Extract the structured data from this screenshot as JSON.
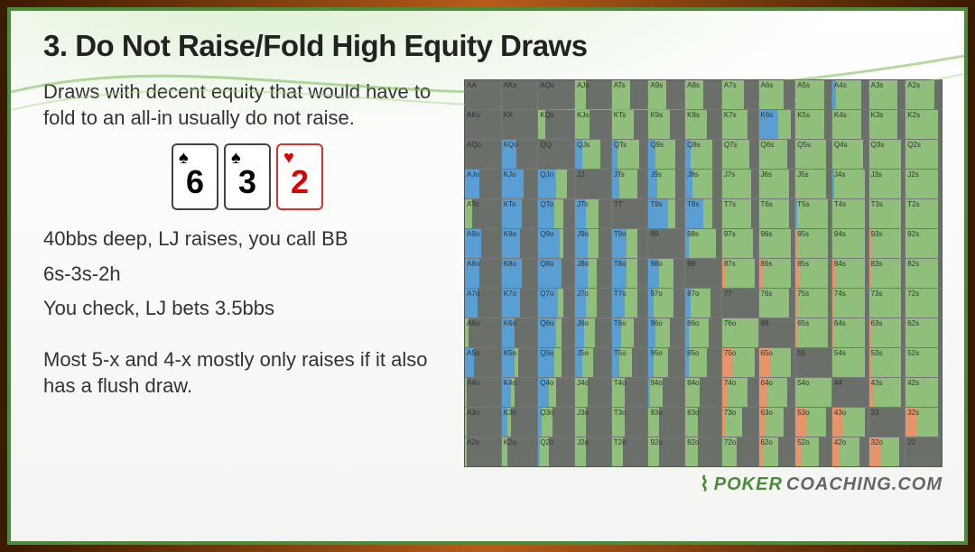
{
  "title": "3. Do Not Raise/Fold High Equity Draws",
  "para1": "Draws with decent equity that would have to fold to an all-in usually do not raise.",
  "cards": [
    {
      "rank": "6",
      "suit": "♠",
      "color": "black"
    },
    {
      "rank": "3",
      "suit": "♠",
      "color": "black"
    },
    {
      "rank": "2",
      "suit": "♥",
      "color": "red"
    }
  ],
  "line1": "40bbs deep, LJ raises, you call BB",
  "line2": "6s-3s-2h",
  "line3": "You check, LJ bets 3.5bbs",
  "para2": "Most 5-x and 4-x mostly only raises if it also has a flush draw.",
  "logo_brand": "POKER",
  "logo_suffix": "COACHING.COM",
  "colors": {
    "fold": "#6a6f6a",
    "call": "#8fbf7a",
    "raise_s": "#5a9fd4",
    "raise_l": "#e8946a",
    "grid_border": "#777"
  },
  "ranks": [
    "A",
    "K",
    "Q",
    "J",
    "T",
    "9",
    "8",
    "7",
    "6",
    "5",
    "4",
    "3",
    "2"
  ],
  "grid": [
    [
      {
        "f": 1.0
      },
      {
        "f": 1.0
      },
      {
        "f": 1.0
      },
      {
        "c": 0.3,
        "f": 0.7
      },
      {
        "c": 0.5,
        "f": 0.5
      },
      {
        "c": 0.5,
        "f": 0.5
      },
      {
        "c": 0.5,
        "f": 0.5
      },
      {
        "c": 0.6,
        "f": 0.4
      },
      {
        "c": 0.7,
        "f": 0.3
      },
      {
        "c": 0.8,
        "f": 0.2
      },
      {
        "c": 0.7,
        "rs": 0.1,
        "f": 0.2
      },
      {
        "c": 0.8,
        "f": 0.2
      },
      {
        "c": 0.8,
        "f": 0.2
      }
    ],
    [
      {
        "f": 1.0
      },
      {
        "f": 1.0
      },
      {
        "f": 0.8,
        "c": 0.2
      },
      {
        "c": 0.4,
        "f": 0.6
      },
      {
        "c": 0.6,
        "f": 0.4
      },
      {
        "c": 0.6,
        "f": 0.4
      },
      {
        "c": 0.6,
        "f": 0.4
      },
      {
        "c": 0.7,
        "f": 0.3
      },
      {
        "c": 0.35,
        "rs": 0.55,
        "f": 0.1
      },
      {
        "c": 0.8,
        "f": 0.2
      },
      {
        "c": 0.8,
        "f": 0.2
      },
      {
        "c": 0.8,
        "f": 0.2
      },
      {
        "c": 0.9,
        "f": 0.1
      }
    ],
    [
      {
        "f": 1.0
      },
      {
        "f": 0.6,
        "rs": 0.4
      },
      {
        "f": 1.0
      },
      {
        "c": 0.5,
        "rs": 0.2,
        "f": 0.3
      },
      {
        "c": 0.6,
        "rs": 0.15,
        "f": 0.25
      },
      {
        "c": 0.55,
        "rs": 0.2,
        "f": 0.25
      },
      {
        "c": 0.6,
        "rs": 0.15,
        "f": 0.25
      },
      {
        "c": 0.75,
        "f": 0.25
      },
      {
        "c": 0.8,
        "f": 0.2
      },
      {
        "c": 0.85,
        "f": 0.15
      },
      {
        "c": 0.85,
        "f": 0.15
      },
      {
        "c": 0.9,
        "f": 0.1
      },
      {
        "c": 0.9,
        "f": 0.1
      }
    ],
    [
      {
        "f": 0.6,
        "rs": 0.4
      },
      {
        "rs": 0.6,
        "f": 0.4
      },
      {
        "rs": 0.5,
        "c": 0.3,
        "f": 0.2
      },
      {
        "f": 1.0
      },
      {
        "c": 0.5,
        "rs": 0.2,
        "f": 0.3
      },
      {
        "c": 0.5,
        "rs": 0.25,
        "f": 0.25
      },
      {
        "c": 0.55,
        "rs": 0.2,
        "f": 0.25
      },
      {
        "c": 0.8,
        "f": 0.2
      },
      {
        "c": 0.85,
        "f": 0.15
      },
      {
        "c": 0.85,
        "f": 0.15
      },
      {
        "c": 0.85,
        "rs": 0.05,
        "f": 0.1
      },
      {
        "c": 0.9,
        "f": 0.1
      },
      {
        "c": 0.9,
        "f": 0.1
      }
    ],
    [
      {
        "f": 0.8,
        "c": 0.2
      },
      {
        "rs": 0.55,
        "f": 0.45
      },
      {
        "rs": 0.45,
        "c": 0.25,
        "f": 0.3
      },
      {
        "c": 0.35,
        "rs": 0.3,
        "f": 0.35
      },
      {
        "f": 1.0
      },
      {
        "rs": 0.55,
        "c": 0.2,
        "f": 0.25
      },
      {
        "rs": 0.5,
        "c": 0.25,
        "f": 0.25
      },
      {
        "c": 0.8,
        "f": 0.2
      },
      {
        "c": 0.85,
        "f": 0.15
      },
      {
        "c": 0.85,
        "rs": 0.05,
        "f": 0.1
      },
      {
        "c": 0.9,
        "f": 0.1
      },
      {
        "c": 0.9,
        "f": 0.1
      },
      {
        "c": 0.9,
        "f": 0.1
      }
    ],
    [
      {
        "rs": 0.45,
        "f": 0.55
      },
      {
        "rs": 0.5,
        "f": 0.5
      },
      {
        "rs": 0.6,
        "c": 0.1,
        "f": 0.3
      },
      {
        "rs": 0.35,
        "c": 0.3,
        "f": 0.35
      },
      {
        "rs": 0.4,
        "c": 0.3,
        "f": 0.3
      },
      {
        "f": 1.0
      },
      {
        "c": 0.75,
        "rs": 0.1,
        "f": 0.15
      },
      {
        "c": 0.85,
        "f": 0.15
      },
      {
        "c": 0.9,
        "f": 0.1
      },
      {
        "c": 0.85,
        "rl": 0.05,
        "f": 0.1
      },
      {
        "c": 0.9,
        "f": 0.1
      },
      {
        "c": 0.85,
        "rl": 0.05,
        "f": 0.1
      },
      {
        "c": 0.9,
        "f": 0.1
      }
    ],
    [
      {
        "rs": 0.4,
        "f": 0.6
      },
      {
        "rs": 0.55,
        "f": 0.45
      },
      {
        "rs": 0.65,
        "f": 0.35
      },
      {
        "rs": 0.35,
        "c": 0.25,
        "f": 0.4
      },
      {
        "rs": 0.4,
        "c": 0.3,
        "f": 0.3
      },
      {
        "rs": 0.3,
        "c": 0.4,
        "f": 0.3
      },
      {
        "f": 1.0
      },
      {
        "c": 0.8,
        "rl": 0.1,
        "f": 0.1
      },
      {
        "c": 0.75,
        "rl": 0.15,
        "f": 0.1
      },
      {
        "c": 0.8,
        "rl": 0.1,
        "f": 0.1
      },
      {
        "c": 0.8,
        "rl": 0.1,
        "f": 0.1
      },
      {
        "c": 0.85,
        "rl": 0.05,
        "f": 0.1
      },
      {
        "c": 0.9,
        "f": 0.1
      }
    ],
    [
      {
        "rs": 0.35,
        "f": 0.65
      },
      {
        "rs": 0.5,
        "f": 0.5
      },
      {
        "rs": 0.55,
        "c": 0.15,
        "f": 0.3
      },
      {
        "rs": 0.3,
        "c": 0.3,
        "f": 0.4
      },
      {
        "rs": 0.35,
        "c": 0.35,
        "f": 0.3
      },
      {
        "c": 0.55,
        "rs": 0.15,
        "f": 0.3
      },
      {
        "c": 0.55,
        "rs": 0.15,
        "f": 0.3
      },
      {
        "f": 1.0
      },
      {
        "c": 0.85,
        "f": 0.15
      },
      {
        "c": 0.85,
        "rl": 0.05,
        "f": 0.1
      },
      {
        "c": 0.85,
        "rl": 0.05,
        "f": 0.1
      },
      {
        "c": 0.9,
        "f": 0.1
      },
      {
        "c": 0.9,
        "f": 0.1
      }
    ],
    [
      {
        "f": 0.9,
        "c": 0.1
      },
      {
        "rs": 0.35,
        "f": 0.65
      },
      {
        "rs": 0.5,
        "c": 0.15,
        "f": 0.35
      },
      {
        "rs": 0.25,
        "c": 0.3,
        "f": 0.45
      },
      {
        "rs": 0.25,
        "c": 0.35,
        "f": 0.4
      },
      {
        "rs": 0.2,
        "c": 0.4,
        "f": 0.4
      },
      {
        "c": 0.55,
        "rs": 0.1,
        "f": 0.35
      },
      {
        "c": 1.0
      },
      {
        "f": 1.0
      },
      {
        "c": 0.85,
        "rl": 0.05,
        "f": 0.1
      },
      {
        "c": 0.85,
        "rl": 0.05,
        "f": 0.1
      },
      {
        "c": 0.85,
        "rl": 0.05,
        "f": 0.1
      },
      {
        "c": 0.9,
        "f": 0.1
      }
    ],
    [
      {
        "rs": 0.25,
        "f": 0.75
      },
      {
        "rs": 0.35,
        "c": 0.1,
        "f": 0.55
      },
      {
        "rs": 0.45,
        "c": 0.2,
        "f": 0.35
      },
      {
        "rs": 0.2,
        "c": 0.3,
        "f": 0.5
      },
      {
        "rs": 0.2,
        "c": 0.35,
        "f": 0.45
      },
      {
        "rs": 0.15,
        "c": 0.4,
        "f": 0.45
      },
      {
        "c": 0.5,
        "rs": 0.1,
        "f": 0.4
      },
      {
        "c": 0.6,
        "rl": 0.3,
        "f": 0.1
      },
      {
        "c": 0.55,
        "rl": 0.35,
        "f": 0.1
      },
      {
        "f": 1.0
      },
      {
        "c": 0.9,
        "f": 0.1
      },
      {
        "c": 0.85,
        "rl": 0.05,
        "f": 0.1
      },
      {
        "c": 0.9,
        "f": 0.1
      }
    ],
    [
      {
        "f": 0.95,
        "c": 0.05
      },
      {
        "rs": 0.25,
        "c": 0.1,
        "f": 0.65
      },
      {
        "rs": 0.3,
        "c": 0.2,
        "f": 0.5
      },
      {
        "c": 0.35,
        "f": 0.65
      },
      {
        "c": 0.35,
        "f": 0.65
      },
      {
        "c": 0.35,
        "rs": 0.05,
        "f": 0.6
      },
      {
        "c": 0.4,
        "f": 0.6
      },
      {
        "c": 0.55,
        "rl": 0.15,
        "f": 0.3
      },
      {
        "c": 0.55,
        "rl": 0.25,
        "f": 0.2
      },
      {
        "c": 1.0
      },
      {
        "f": 1.0
      },
      {
        "c": 0.8,
        "rl": 0.1,
        "f": 0.1
      },
      {
        "c": 0.9,
        "f": 0.1
      }
    ],
    [
      {
        "f": 0.95,
        "c": 0.05
      },
      {
        "rs": 0.15,
        "c": 0.1,
        "f": 0.75
      },
      {
        "c": 0.3,
        "rs": 0.1,
        "f": 0.6
      },
      {
        "c": 0.3,
        "f": 0.7
      },
      {
        "c": 0.35,
        "f": 0.65
      },
      {
        "c": 0.3,
        "f": 0.7
      },
      {
        "c": 0.35,
        "f": 0.65
      },
      {
        "c": 0.45,
        "rl": 0.1,
        "f": 0.45
      },
      {
        "c": 0.5,
        "rl": 0.2,
        "f": 0.3
      },
      {
        "c": 0.55,
        "rl": 0.3,
        "f": 0.15
      },
      {
        "c": 0.6,
        "rl": 0.3,
        "f": 0.1
      },
      {
        "f": 1.0
      },
      {
        "c": 0.6,
        "rl": 0.3,
        "f": 0.1
      }
    ],
    [
      {
        "f": 0.95,
        "c": 0.05
      },
      {
        "c": 0.15,
        "f": 0.85
      },
      {
        "c": 0.25,
        "rs": 0.05,
        "f": 0.7
      },
      {
        "c": 0.3,
        "f": 0.7
      },
      {
        "c": 0.3,
        "f": 0.7
      },
      {
        "c": 0.3,
        "f": 0.7
      },
      {
        "c": 0.35,
        "f": 0.65
      },
      {
        "c": 0.4,
        "f": 0.6
      },
      {
        "c": 0.45,
        "rl": 0.1,
        "f": 0.45
      },
      {
        "c": 0.5,
        "rl": 0.15,
        "f": 0.35
      },
      {
        "c": 0.55,
        "rl": 0.2,
        "f": 0.25
      },
      {
        "c": 0.55,
        "rl": 0.3,
        "f": 0.15
      },
      {
        "f": 1.0
      }
    ]
  ]
}
